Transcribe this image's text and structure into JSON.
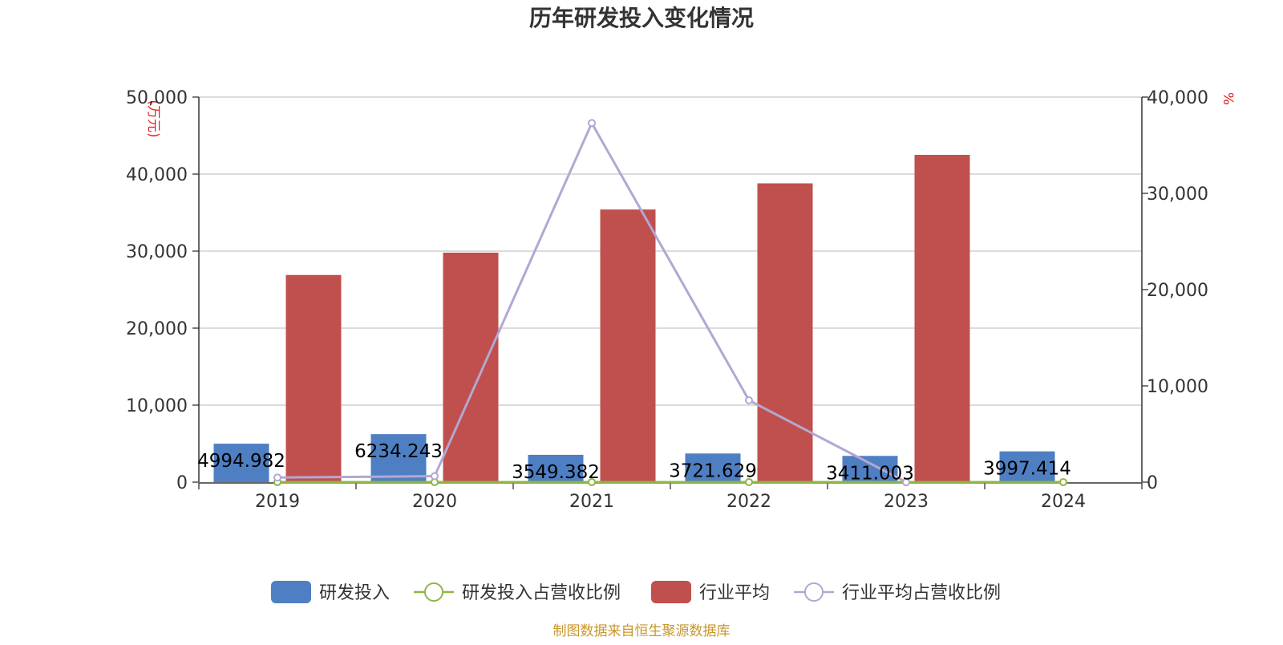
{
  "chart_data": {
    "type": "bar",
    "title": "历年研发投入变化情况",
    "categories": [
      "2019",
      "2020",
      "2021",
      "2022",
      "2023",
      "2024"
    ],
    "y_left": {
      "unit_label": "(万元)",
      "min": 0,
      "max": 50000,
      "ticks": [
        "0",
        "10,000",
        "20,000",
        "30,000",
        "40,000",
        "50,000"
      ]
    },
    "y_right": {
      "unit_label": "%",
      "min": 0,
      "max": 40000,
      "ticks": [
        "0",
        "10,000",
        "20,000",
        "30,000",
        "40,000"
      ]
    },
    "series": [
      {
        "name": "研发投入",
        "kind": "bar",
        "axis": "left",
        "color": "#4f7fc3",
        "values": [
          4994.982,
          6234.243,
          3549.382,
          3721.629,
          3411.003,
          3997.414
        ],
        "labels": [
          "4994.982",
          "6234.243",
          "3549.382",
          "3721.629",
          "3411.003",
          "3997.414"
        ]
      },
      {
        "name": "研发投入占营收比例",
        "kind": "line",
        "axis": "right",
        "color": "#8fb54a",
        "values": [
          5,
          5,
          5,
          5,
          5,
          5
        ]
      },
      {
        "name": "行业平均",
        "kind": "bar",
        "axis": "left",
        "color": "#c0504d",
        "values": [
          26900,
          29800,
          35400,
          38800,
          42500,
          null
        ]
      },
      {
        "name": "行业平均占营收比例",
        "kind": "line",
        "axis": "right",
        "color": "#b3a7d2",
        "values": [
          480,
          620,
          37300,
          8500,
          0,
          null
        ]
      }
    ],
    "grid": true,
    "legend": "bottom-center"
  },
  "footer": {
    "source": "制图数据来自恒生聚源数据库"
  }
}
